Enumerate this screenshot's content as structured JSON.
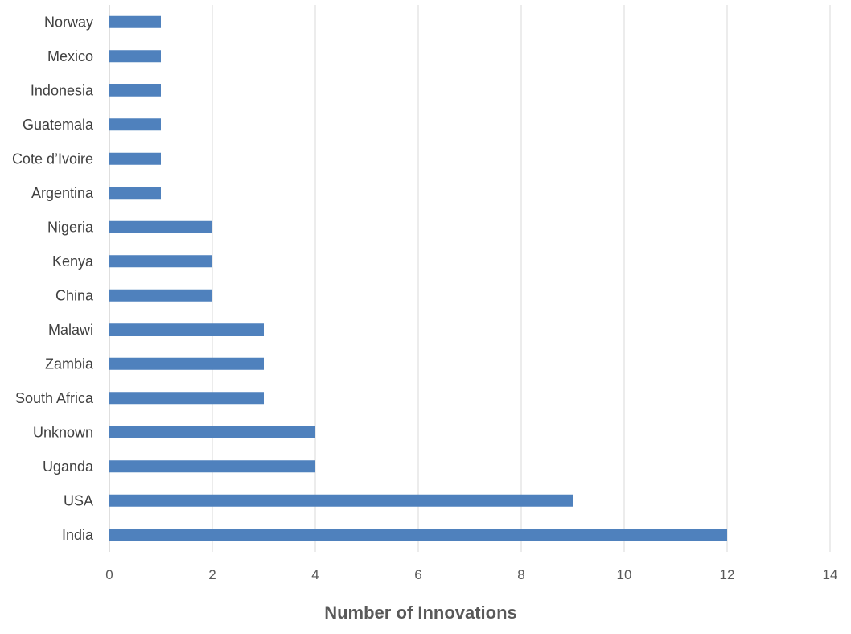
{
  "chart_data": {
    "type": "bar",
    "orientation": "horizontal",
    "categories": [
      "India",
      "USA",
      "Uganda",
      "Unknown",
      "South Africa",
      "Zambia",
      "Malawi",
      "China",
      "Kenya",
      "Nigeria",
      "Argentina",
      "Cote d’Ivoire",
      "Guatemala",
      "Indonesia",
      "Mexico",
      "Norway"
    ],
    "values": [
      12,
      9,
      4,
      4,
      3,
      3,
      3,
      2,
      2,
      2,
      1,
      1,
      1,
      1,
      1,
      1
    ],
    "title": "",
    "xlabel": "Number of Innovations",
    "ylabel": "",
    "xlim": [
      0,
      14
    ],
    "xticks": [
      0,
      2,
      4,
      6,
      8,
      10,
      12,
      14
    ],
    "grid": "vertical",
    "legend": "none",
    "bar_color": "#4F81BD",
    "grid_color": "#D9D9D9"
  }
}
